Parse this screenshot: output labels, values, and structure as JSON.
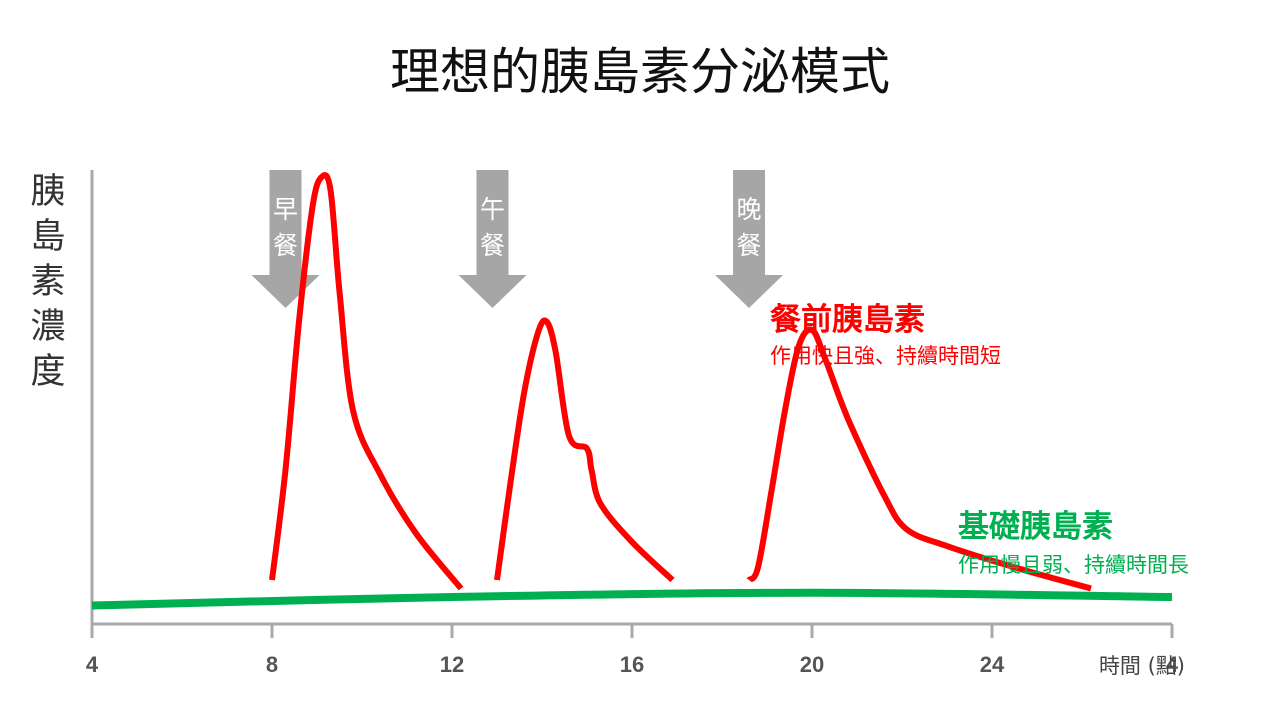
{
  "title": "理想的胰島素分泌模式",
  "ylabel": "胰島素濃度",
  "xlabel": "時間 (點)",
  "chart_data": {
    "type": "line",
    "title": "理想的胰島素分泌模式",
    "xlabel": "時間 (點)",
    "ylabel": "胰島素濃度",
    "x_ticks": [
      "4",
      "8",
      "12",
      "16",
      "20",
      "24",
      "4"
    ],
    "xlim": [
      4,
      28
    ],
    "ylim": [
      0,
      100
    ],
    "grid": false,
    "meals": [
      {
        "label": "早餐",
        "x": 8.3
      },
      {
        "label": "午餐",
        "x": 12.9
      },
      {
        "label": "晚餐",
        "x": 18.6
      }
    ],
    "series": [
      {
        "name": "餐前胰島素",
        "description": "作用快且強、持續時間短",
        "color": "#ff0000",
        "segments": [
          [
            [
              8.0,
              4
            ],
            [
              8.3,
              30
            ],
            [
              8.6,
              65
            ],
            [
              8.9,
              92
            ],
            [
              9.1,
              99
            ],
            [
              9.3,
              96
            ],
            [
              9.5,
              72
            ],
            [
              9.8,
              44
            ],
            [
              10.4,
              29
            ],
            [
              11.2,
              15
            ],
            [
              12.2,
              2
            ]
          ],
          [
            [
              13.0,
              4
            ],
            [
              13.3,
              27
            ],
            [
              13.6,
              48
            ],
            [
              13.9,
              62
            ],
            [
              14.1,
              65
            ],
            [
              14.3,
              58
            ],
            [
              14.6,
              38
            ],
            [
              15.0,
              35
            ],
            [
              15.1,
              30
            ],
            [
              15.3,
              22
            ],
            [
              16.0,
              13
            ],
            [
              16.9,
              4
            ]
          ],
          [
            [
              18.6,
              4
            ],
            [
              18.8,
              7
            ],
            [
              19.1,
              25
            ],
            [
              19.4,
              44
            ],
            [
              19.7,
              59
            ],
            [
              20.0,
              63
            ],
            [
              20.3,
              56
            ],
            [
              20.8,
              42
            ],
            [
              21.6,
              24
            ],
            [
              22.1,
              16
            ],
            [
              23.0,
              12
            ],
            [
              24.5,
              7
            ],
            [
              26.2,
              2
            ]
          ]
        ]
      },
      {
        "name": "基礎胰島素",
        "description": "作用慢且弱、持續時間長",
        "color": "#00b050",
        "x": [
          4,
          12,
          20,
          28
        ],
        "values": [
          -2,
          0,
          1,
          0
        ]
      }
    ],
    "legend": "right"
  }
}
